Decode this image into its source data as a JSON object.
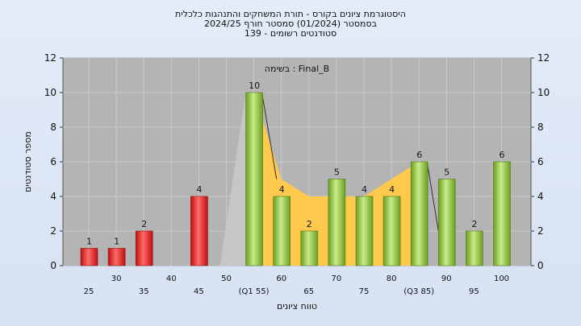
{
  "chart_data": {
    "type": "bar",
    "title_lines": [
      "היסטוגרמת ציונים בקורס - תורת המשחקים והתנהגות כלכלית",
      "בסמסטר  (01/2024)  סמסטר חורף 2024/25",
      "סטודנטים רשומים - 139"
    ],
    "annotation": "בשימה : Final_B",
    "xlabel": "טווח ציונים",
    "ylabel": "מספר סטודנטים",
    "ylim": [
      0,
      12
    ],
    "yticks": [
      0,
      2,
      4,
      6,
      8,
      10,
      12
    ],
    "xticks_upper": [
      "30",
      "40",
      "50",
      "60",
      "70",
      "80",
      "90",
      "100"
    ],
    "xticks_lower": [
      "25",
      "35",
      "45",
      "(Q1 55)",
      "65",
      "75",
      "(Q3 85)",
      "95"
    ],
    "x_all": [
      25,
      30,
      35,
      40,
      45,
      50,
      55,
      60,
      65,
      70,
      75,
      80,
      85,
      90,
      95,
      100
    ],
    "bars": [
      {
        "x": 25,
        "value": 1,
        "label": "1",
        "fail": true
      },
      {
        "x": 30,
        "value": 1,
        "label": "1",
        "fail": true
      },
      {
        "x": 35,
        "value": 2,
        "label": "2",
        "fail": true
      },
      {
        "x": 45,
        "value": 4,
        "label": "4",
        "fail": true
      },
      {
        "x": 55,
        "value": 10,
        "label": "10",
        "fail": false
      },
      {
        "x": 60,
        "value": 4,
        "label": "4",
        "fail": false
      },
      {
        "x": 65,
        "value": 2,
        "label": "2",
        "fail": false
      },
      {
        "x": 70,
        "value": 5,
        "label": "5",
        "fail": false
      },
      {
        "x": 75,
        "value": 4,
        "label": "4",
        "fail": false
      },
      {
        "x": 80,
        "value": 4,
        "label": "4",
        "fail": false
      },
      {
        "x": 85,
        "value": 6,
        "label": "6",
        "fail": false
      },
      {
        "x": 90,
        "value": 5,
        "label": "5",
        "fail": false
      },
      {
        "x": 95,
        "value": 2,
        "label": "2",
        "fail": false
      },
      {
        "x": 100,
        "value": 6,
        "label": "6",
        "fail": false
      }
    ],
    "iqr_area": {
      "x": [
        55,
        60,
        65,
        70,
        75,
        80,
        85
      ],
      "y": [
        10,
        5,
        4,
        4,
        4,
        5,
        6
      ]
    },
    "colors": {
      "plot_bg": "#b4b4b4",
      "fail_bar": "#e02020",
      "pass_bar": "#8cc63f",
      "iqr_fill": "#ffc94d",
      "grey_wedge": "#c8c8c8"
    }
  }
}
